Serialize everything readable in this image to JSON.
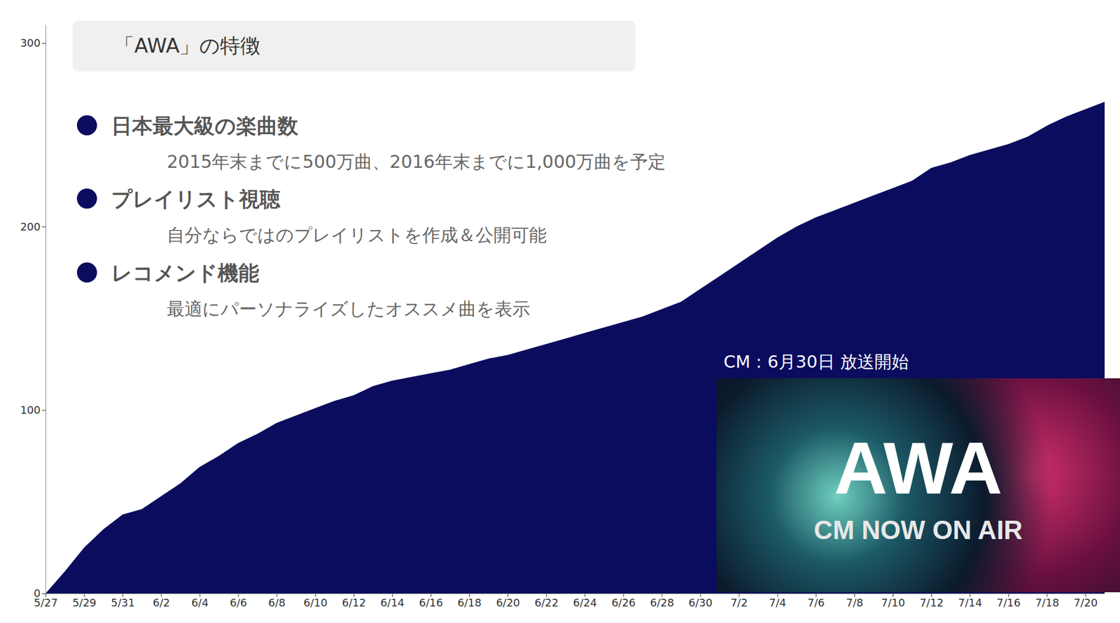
{
  "chart_data": {
    "type": "area",
    "categories": [
      "5/27",
      null,
      "5/29",
      null,
      "5/31",
      null,
      "6/2",
      null,
      "6/4",
      null,
      "6/6",
      null,
      "6/8",
      null,
      "6/10",
      null,
      "6/12",
      null,
      "6/14",
      null,
      "6/16",
      null,
      "6/18",
      null,
      "6/20",
      null,
      "6/22",
      null,
      "6/24",
      null,
      "6/26",
      null,
      "6/28",
      null,
      "6/30",
      null,
      "7/2",
      null,
      "7/4",
      null,
      "7/6",
      null,
      "7/8",
      null,
      "7/10",
      null,
      "7/12",
      null,
      "7/14",
      null,
      "7/16",
      null,
      "7/18",
      null,
      "7/20",
      null
    ],
    "values": [
      0,
      12,
      25,
      35,
      43,
      46,
      53,
      60,
      69,
      75,
      82,
      87,
      93,
      97,
      101,
      105,
      108,
      113,
      116,
      118,
      120,
      122,
      125,
      128,
      130,
      133,
      136,
      139,
      142,
      145,
      148,
      151,
      155,
      159,
      166,
      173,
      180,
      187,
      194,
      200,
      205,
      209,
      213,
      217,
      221,
      225,
      232,
      235,
      239,
      242,
      245,
      249,
      255,
      260,
      264,
      268
    ],
    "color": "#0b0c5e",
    "ylim": [
      0,
      310
    ],
    "yticks": [
      0,
      100,
      200,
      300
    ],
    "grid": false
  },
  "feature_panel": {
    "title": "「AWA」の特徴",
    "items": [
      {
        "heading": "日本最大級の楽曲数",
        "detail": "2015年末までに500万曲、2016年末までに1,000万曲を予定"
      },
      {
        "heading": "プレイリスト視聴",
        "detail": "自分ならではのプレイリストを作成＆公開可能"
      },
      {
        "heading": "レコメンド機能",
        "detail": "最適にパーソナライズしたオススメ曲を表示"
      }
    ]
  },
  "cm_banner": {
    "caption": "CM：6月30日 放送開始",
    "image_texts": [
      "AWA",
      "CM NOW ON AIR"
    ]
  }
}
